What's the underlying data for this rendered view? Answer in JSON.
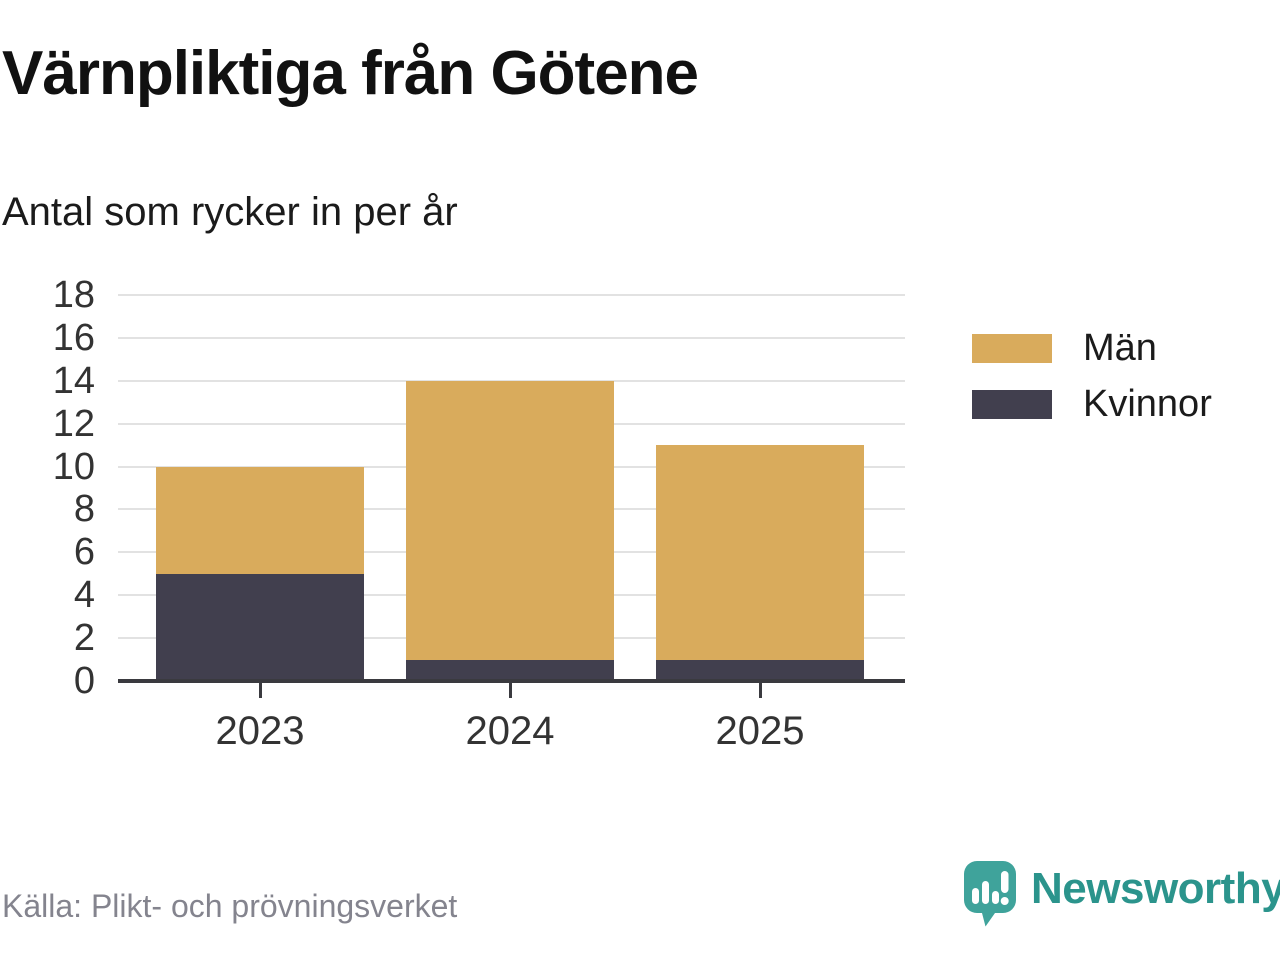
{
  "header": {
    "title": "Värnpliktiga från Götene",
    "subtitle": "Antal som rycker in per år"
  },
  "chart_data": {
    "type": "bar",
    "stacked": true,
    "title": "Värnpliktiga från Götene",
    "subtitle": "Antal som rycker in per år",
    "categories": [
      "2023",
      "2024",
      "2025"
    ],
    "series": [
      {
        "name": "Män",
        "color": "#D9AB5C",
        "values": [
          5,
          13,
          10
        ]
      },
      {
        "name": "Kvinnor",
        "color": "#413F4E",
        "values": [
          5,
          1,
          1
        ]
      }
    ],
    "stack_order": [
      "Kvinnor",
      "Män"
    ],
    "stacked_totals": [
      10,
      14,
      11
    ],
    "xlabel": "",
    "ylabel": "",
    "ylim": [
      0,
      18
    ],
    "yticks": [
      0,
      2,
      4,
      6,
      8,
      10,
      12,
      14,
      16,
      18
    ],
    "grid": "horizontal",
    "gridline_color": "#E2E2E2",
    "axis_color": "#3A3A3F",
    "legend_position": "right"
  },
  "footer": {
    "source": "Källa: Plikt- och prövningsverket",
    "brand_name": "Newsworthy",
    "brand_color": "#2B948C",
    "brand_mark_color": "#3FA39B",
    "brand_mark_icon": "bar-chart-exclamation-speech-bubble"
  }
}
